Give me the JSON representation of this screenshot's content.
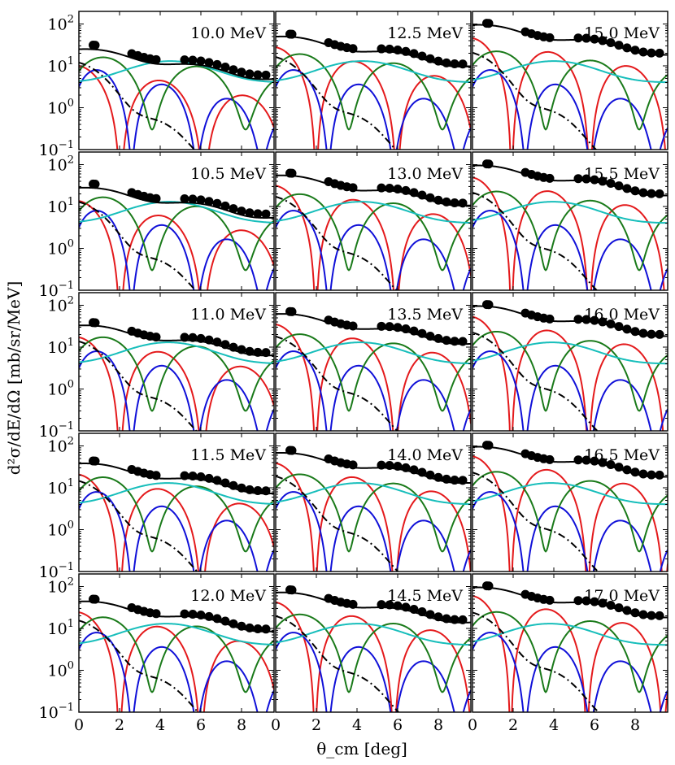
{
  "chart_data": {
    "type": "line",
    "layout": "5 rows x 3 columns grid of panels, shared axes",
    "xlabel": "θ_cm [deg]",
    "ylabel": "d²σ/dE/dΩ [mb/sr/MeV]",
    "xlim": [
      0,
      9.6
    ],
    "ylim": [
      0.1,
      200
    ],
    "yscale": "log",
    "x_ticks": [
      0,
      2,
      4,
      6,
      8
    ],
    "x_tick_labels": [
      "0",
      "2",
      "4",
      "6",
      "8"
    ],
    "y_ticks": [
      0.1,
      1,
      10,
      100
    ],
    "y_tick_labels": [
      {
        "base": "10",
        "exp": "−1"
      },
      {
        "base": "10",
        "exp": "0"
      },
      {
        "base": "10",
        "exp": "1"
      },
      {
        "base": "10",
        "exp": "2"
      }
    ],
    "series_colors": {
      "data": "#000000",
      "total": "#000000",
      "L0": "#e41a1c",
      "L1": "#1010d8",
      "L2": "#1a7a1a",
      "L3": "#17bebb",
      "dashdot": "#000000"
    },
    "panels": [
      {
        "label": "10.0 MeV",
        "col": 0,
        "row": 0,
        "data_y0": 30,
        "curve_y0": 25
      },
      {
        "label": "10.5 MeV",
        "col": 0,
        "row": 1,
        "data_y0": 33,
        "curve_y0": 28
      },
      {
        "label": "11.0 MeV",
        "col": 0,
        "row": 2,
        "data_y0": 37,
        "curve_y0": 33
      },
      {
        "label": "11.5 MeV",
        "col": 0,
        "row": 3,
        "data_y0": 42,
        "curve_y0": 38
      },
      {
        "label": "12.0 MeV",
        "col": 0,
        "row": 4,
        "data_y0": 48,
        "curve_y0": 44
      },
      {
        "label": "12.5 MeV",
        "col": 1,
        "row": 0,
        "data_y0": 55,
        "curve_y0": 50
      },
      {
        "label": "13.0 MeV",
        "col": 1,
        "row": 1,
        "data_y0": 60,
        "curve_y0": 55
      },
      {
        "label": "13.5 MeV",
        "col": 1,
        "row": 2,
        "data_y0": 68,
        "curve_y0": 62
      },
      {
        "label": "14.0 MeV",
        "col": 1,
        "row": 3,
        "data_y0": 75,
        "curve_y0": 68
      },
      {
        "label": "14.5 MeV",
        "col": 1,
        "row": 4,
        "data_y0": 80,
        "curve_y0": 72
      },
      {
        "label": "15.0 MeV",
        "col": 2,
        "row": 0,
        "data_y0": 100,
        "curve_y0": 95
      },
      {
        "label": "15.5 MeV",
        "col": 2,
        "row": 1,
        "data_y0": 100,
        "curve_y0": 95
      },
      {
        "label": "16.0 MeV",
        "col": 2,
        "row": 2,
        "data_y0": 100,
        "curve_y0": 95
      },
      {
        "label": "16.5 MeV",
        "col": 2,
        "row": 3,
        "data_y0": 100,
        "curve_y0": 95
      },
      {
        "label": "17.0 MeV",
        "col": 2,
        "row": 4,
        "data_y0": 100,
        "curve_y0": 95
      }
    ]
  }
}
